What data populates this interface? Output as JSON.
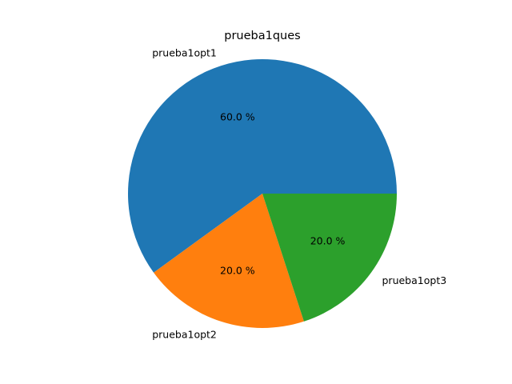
{
  "chart_data": {
    "type": "pie",
    "title": "prueba1ques",
    "categories": [
      "prueba1opt1",
      "prueba1opt2",
      "prueba1opt3"
    ],
    "values": [
      60.0,
      20.0,
      20.0
    ],
    "percent_labels": [
      "60.0 %",
      "20.0 %",
      "20.0 %"
    ],
    "colors": [
      "#1f77b4",
      "#ff7f0e",
      "#2ca02c"
    ],
    "start_angle_deg": 0,
    "direction": "counterclockwise"
  }
}
